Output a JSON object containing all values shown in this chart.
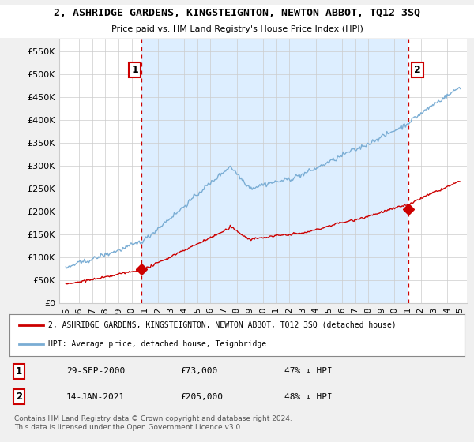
{
  "title": "2, ASHRIDGE GARDENS, KINGSTEIGNTON, NEWTON ABBOT, TQ12 3SQ",
  "subtitle": "Price paid vs. HM Land Registry's House Price Index (HPI)",
  "bg_color": "#f0f0f0",
  "plot_bg_color": "#ffffff",
  "shaded_color": "#ddeeff",
  "grid_color": "#cccccc",
  "hpi_color": "#7aadd4",
  "price_color": "#cc0000",
  "marker_color": "#cc0000",
  "dashed_color": "#cc0000",
  "ylim": [
    0,
    575000
  ],
  "yticks": [
    0,
    50000,
    100000,
    150000,
    200000,
    250000,
    300000,
    350000,
    400000,
    450000,
    500000,
    550000
  ],
  "ytick_labels": [
    "£0",
    "£50K",
    "£100K",
    "£150K",
    "£200K",
    "£250K",
    "£300K",
    "£350K",
    "£400K",
    "£450K",
    "£500K",
    "£550K"
  ],
  "xlim_start": 1994.5,
  "xlim_end": 2025.5,
  "xtick_years": [
    1995,
    1996,
    1997,
    1998,
    1999,
    2000,
    2001,
    2002,
    2003,
    2004,
    2005,
    2006,
    2007,
    2008,
    2009,
    2010,
    2011,
    2012,
    2013,
    2014,
    2015,
    2016,
    2017,
    2018,
    2019,
    2020,
    2021,
    2022,
    2023,
    2024,
    2025
  ],
  "sale1_x": 2000.75,
  "sale1_y": 73000,
  "sale1_label": "1",
  "sale2_x": 2021.04,
  "sale2_y": 205000,
  "sale2_label": "2",
  "legend_line1": "2, ASHRIDGE GARDENS, KINGSTEIGNTON, NEWTON ABBOT, TQ12 3SQ (detached house)",
  "legend_line2": "HPI: Average price, detached house, Teignbridge",
  "table_row1_num": "1",
  "table_row1_date": "29-SEP-2000",
  "table_row1_price": "£73,000",
  "table_row1_hpi": "47% ↓ HPI",
  "table_row2_num": "2",
  "table_row2_date": "14-JAN-2021",
  "table_row2_price": "£205,000",
  "table_row2_hpi": "48% ↓ HPI",
  "footnote": "Contains HM Land Registry data © Crown copyright and database right 2024.\nThis data is licensed under the Open Government Licence v3.0.",
  "vline1_x": 2000.75,
  "vline2_x": 2021.04
}
